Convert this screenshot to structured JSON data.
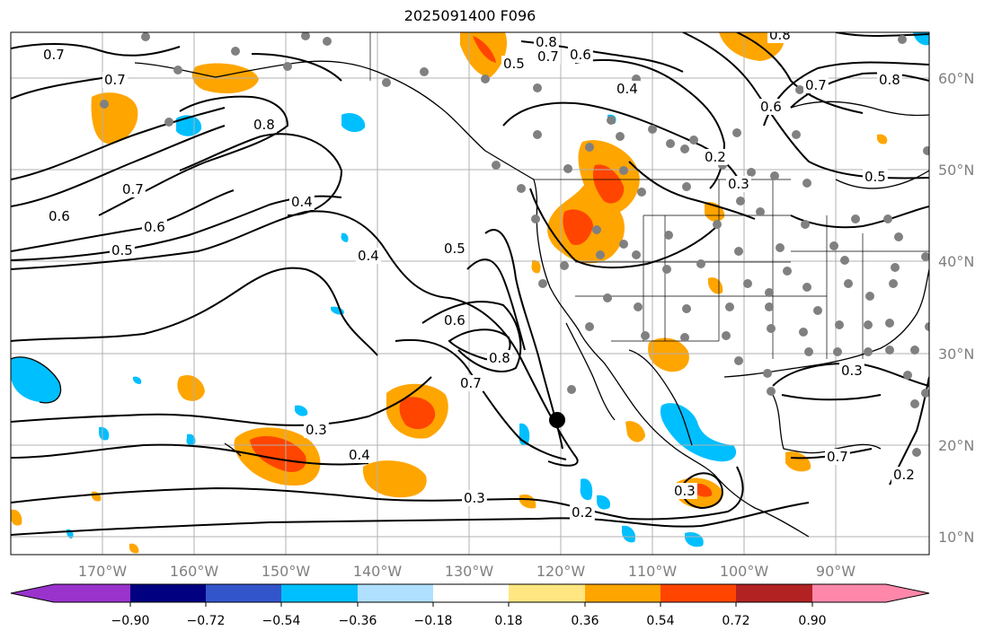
{
  "title": "2025091400 F096",
  "map": {
    "projection": "cylindrical",
    "lon_range": [
      -180,
      -78
    ],
    "lat_range": [
      8,
      65
    ],
    "lon_ticks": [
      "170°W",
      "160°W",
      "150°W",
      "140°W",
      "130°W",
      "120°W",
      "110°W",
      "100°W",
      "90°W"
    ],
    "lat_ticks": [
      "10°N",
      "20°N",
      "30°N",
      "40°N",
      "50°N",
      "60°N"
    ],
    "grid": true,
    "contour_labels": [
      "0.7",
      "0.7",
      "0.8",
      "0.7",
      "0.6",
      "0.6",
      "0.5",
      "0.4",
      "0.4",
      "0.5",
      "0.6",
      "0.8",
      "0.7",
      "0.3",
      "0.4",
      "0.3",
      "0.2",
      "0.8",
      "0.5",
      "0.6",
      "0.4",
      "0.7",
      "0.2",
      "0.3",
      "0.6",
      "0.7",
      "0.8",
      "0.5",
      "0.3",
      "0.3",
      "0.2",
      "0.7",
      "0.8"
    ],
    "marker": "black-dot"
  },
  "colorbar": {
    "tick_labels": [
      "−0.90",
      "−0.72",
      "−0.54",
      "−0.36",
      "−0.18",
      "0.18",
      "0.36",
      "0.54",
      "0.72",
      "0.90"
    ],
    "colors": [
      "#9933cc",
      "#000080",
      "#3355cc",
      "#00bfff",
      "#b0e0ff",
      "#ffffff",
      "#ffe680",
      "#ffa500",
      "#ff4500",
      "#b22222",
      "#ff88aa"
    ]
  },
  "colors": {
    "positive_light": "#ffa500",
    "positive_strong": "#ff4500",
    "negative": "#00bfff",
    "station": "#808080",
    "grid": "#b0b0b0",
    "contour": "#000000"
  }
}
